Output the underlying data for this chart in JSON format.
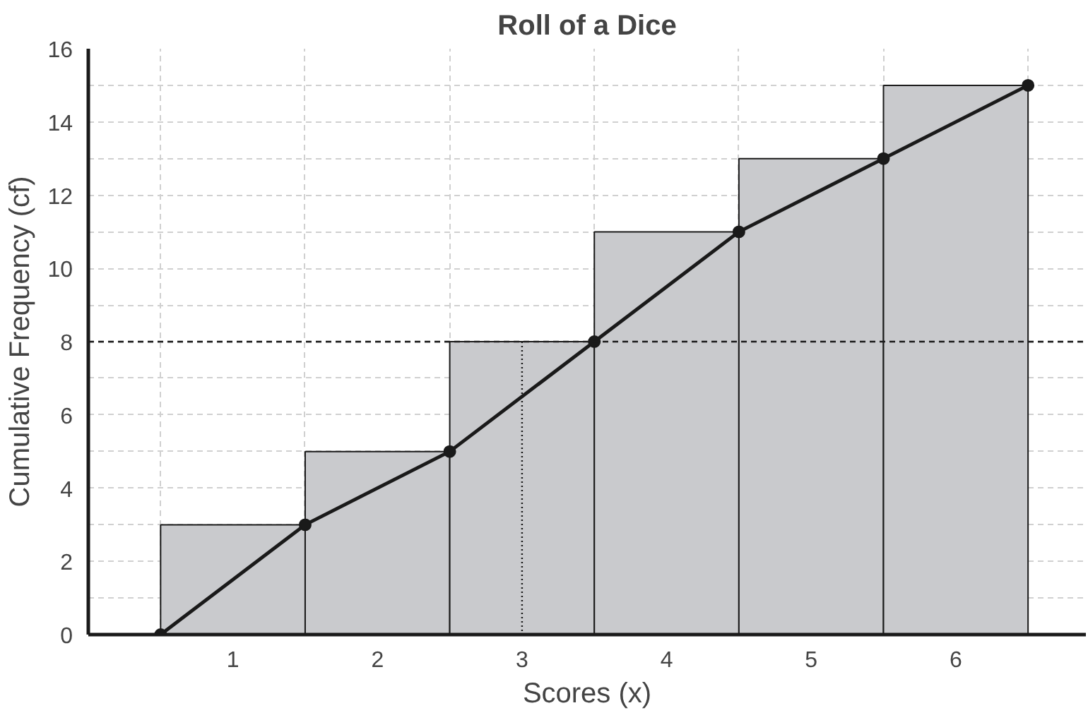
{
  "chart_data": {
    "type": "histogram",
    "title": "Roll of a Dice",
    "xlabel": "Scores (x)",
    "ylabel": "Cumulative Frequency (cf)",
    "bins": [
      0.5,
      1.5,
      2.5,
      3.5,
      4.5,
      5.5,
      6.5
    ],
    "series": [
      {
        "color": "#c9cacd",
        "values": [
          3,
          5,
          8,
          11,
          13,
          15
        ]
      },
      {
        "type": "line",
        "color": "#1a1a1a",
        "x": [
          0.5,
          1.5,
          2.5,
          3.5,
          4.5,
          5.5,
          6.5
        ],
        "values": [
          0,
          3,
          5,
          8,
          11,
          13,
          15
        ],
        "marker": "circle",
        "line_style": "solid"
      }
    ],
    "xlim": [
      0,
      6.9
    ],
    "xticks": [
      1,
      2,
      3,
      4,
      5,
      6
    ],
    "ylim": [
      0,
      16
    ],
    "yticks": [
      0,
      {
        "value": 1,
        "label": null
      },
      2,
      {
        "value": 3,
        "label": null
      },
      4,
      {
        "value": 5,
        "label": null
      },
      6,
      {
        "value": 7,
        "label": null
      },
      8,
      {
        "value": 9,
        "label": null
      },
      10,
      {
        "value": 11,
        "label": null
      },
      12,
      {
        "value": 13,
        "label": null
      },
      14,
      {
        "value": 15,
        "label": null
      },
      16
    ],
    "grid": true,
    "ref_lines": [
      {
        "axis": "y",
        "value": 8,
        "color": "#1a1a1a",
        "line_style": "dashed"
      },
      {
        "axis": "x",
        "value": 3,
        "color": "#1a1a1a",
        "line_style": "dotted"
      }
    ]
  }
}
